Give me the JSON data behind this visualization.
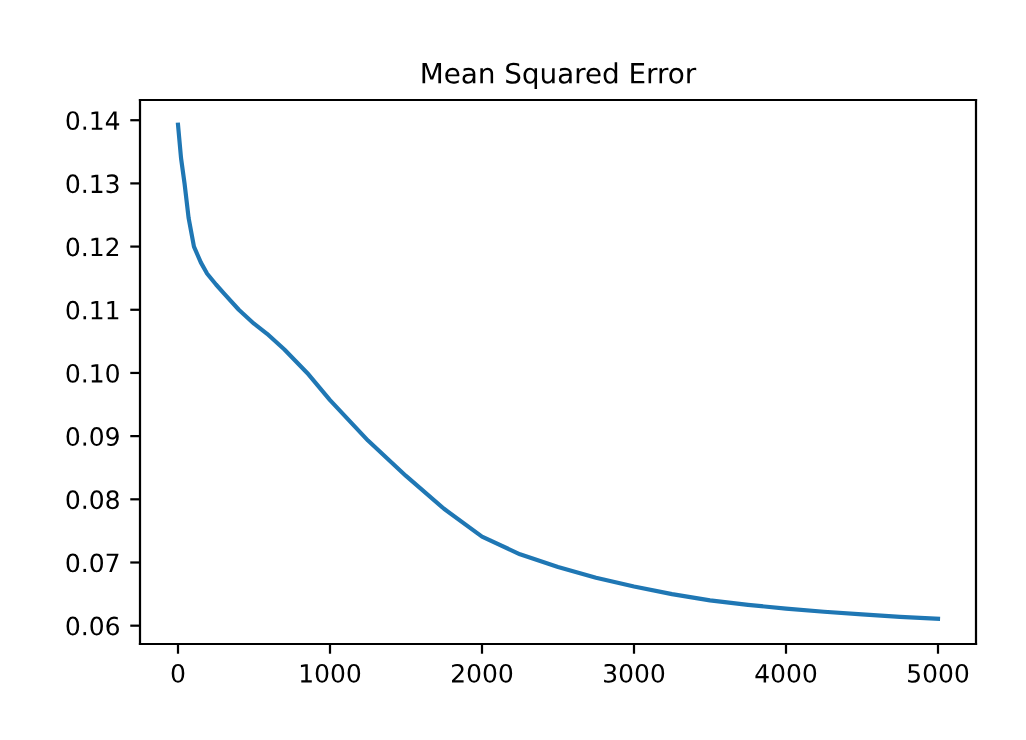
{
  "chart_data": {
    "type": "line",
    "title": "Mean Squared Error",
    "x": [
      0,
      20,
      43,
      70,
      105,
      150,
      192,
      250,
      302,
      400,
      500,
      586,
      700,
      850,
      1000,
      1250,
      1500,
      1750,
      2000,
      2250,
      2500,
      2750,
      3000,
      3250,
      3500,
      3750,
      4000,
      4250,
      4500,
      4750,
      5000
    ],
    "series": [
      {
        "color": "#1f77b4",
        "values": [
          0.1393,
          0.134,
          0.13,
          0.1245,
          0.12,
          0.1175,
          0.1157,
          0.114,
          0.1126,
          0.11,
          0.1078,
          0.1062,
          0.1037,
          0.1,
          0.0957,
          0.0893,
          0.0837,
          0.0785,
          0.0741,
          0.0713,
          0.0693,
          0.0676,
          0.0662,
          0.065,
          0.064,
          0.0633,
          0.0627,
          0.0622,
          0.0618,
          0.0614,
          0.0611
        ]
      }
    ],
    "xlim": [
      -250,
      5250
    ],
    "xticks": [
      0,
      1000,
      2000,
      3000,
      4000,
      5000
    ],
    "ylim": [
      0.0571,
      0.1432
    ],
    "yticks": [
      {
        "value": 0.06,
        "label": "0.06"
      },
      {
        "value": 0.07,
        "label": "0.07"
      },
      {
        "value": 0.08,
        "label": "0.08"
      },
      {
        "value": 0.09,
        "label": "0.09"
      },
      {
        "value": 0.1,
        "label": "0.10"
      },
      {
        "value": 0.11,
        "label": "0.11"
      },
      {
        "value": 0.12,
        "label": "0.12"
      },
      {
        "value": 0.13,
        "label": "0.13"
      },
      {
        "value": 0.14,
        "label": "0.14"
      }
    ],
    "grid": false,
    "legend": false,
    "marker": "none",
    "line_style": "solid"
  }
}
